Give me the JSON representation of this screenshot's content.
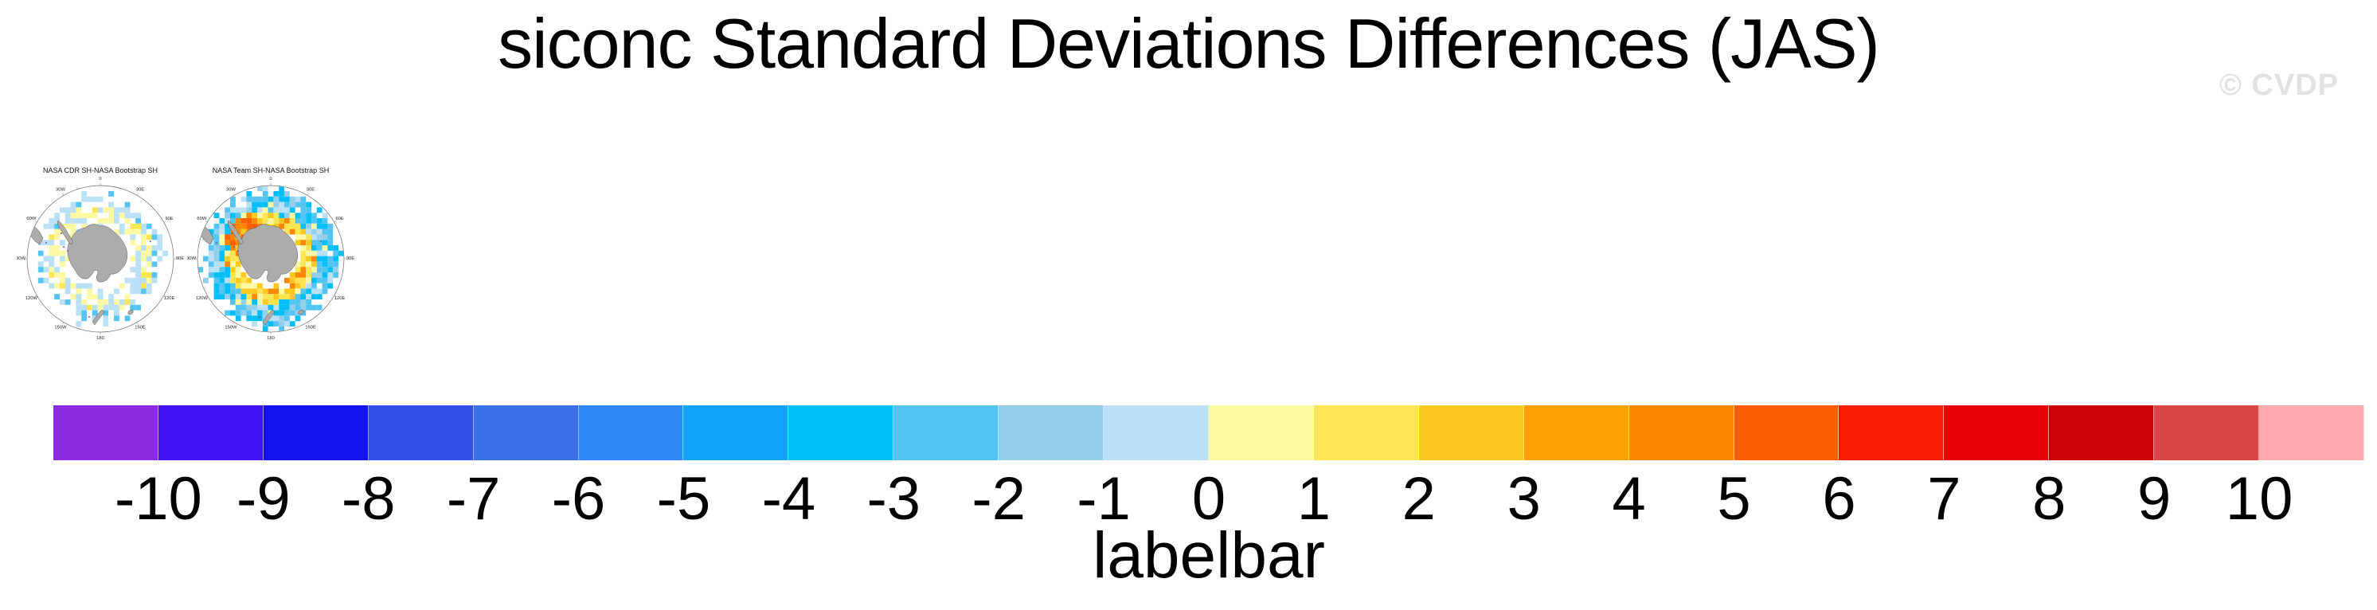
{
  "page": {
    "title": "siconc Standard Deviations Differences (JAS)",
    "watermark": "© CVDP"
  },
  "map_lon_labels": [
    {
      "label": "0",
      "angle": 0
    },
    {
      "label": "30E",
      "angle": 30
    },
    {
      "label": "60E",
      "angle": 60
    },
    {
      "label": "90E",
      "angle": 90
    },
    {
      "label": "120E",
      "angle": 120
    },
    {
      "label": "150E",
      "angle": 150
    },
    {
      "label": "180",
      "angle": 180
    },
    {
      "label": "150W",
      "angle": 210
    },
    {
      "label": "120W",
      "angle": 240
    },
    {
      "label": "90W",
      "angle": 270
    },
    {
      "label": "60W",
      "angle": 300
    },
    {
      "label": "30W",
      "angle": 330
    }
  ],
  "maps": [
    {
      "title": "NASA CDR SH-NASA Bootstrap SH",
      "seed": 12,
      "ring": {
        "inner": 42,
        "outer": 79
      },
      "hotspot": null,
      "palette": {
        "outer": [
          "#B9E0F5",
          "#B9E0F5",
          "#54C5F2",
          "#B9E0F5",
          "",
          "",
          ""
        ],
        "mid": [
          "#FDF9A3",
          "#FDF9A3",
          "#FDF9A3",
          "#B9E0F5",
          "#FEE551",
          "#B9E0F5",
          ""
        ],
        "inner": [
          "#FDF9A3",
          "#FDF9A3",
          "#B9E0F5",
          "#B9E0F5",
          "",
          ""
        ],
        "hot": []
      }
    },
    {
      "title": "NASA Team SH-NASA Bootstrap SH",
      "seed": 99,
      "ring": {
        "inner": 36,
        "outer": 86
      },
      "hotspot": [
        285,
        340
      ],
      "palette": {
        "outer": [
          "#54C5F2",
          "#00BFF8",
          "#00BFF8",
          "#93CFEA",
          "#B9E0F5",
          "#54C5F2",
          ""
        ],
        "mid": [
          "#00BFF8",
          "#54C5F2",
          "#93CFEA",
          "#B9E0F5",
          "#FDF9A3",
          "#00BFF8"
        ],
        "inner": [
          "#FEE551",
          "#FDC920",
          "#FEE551",
          "#FDC920",
          "#FDF9A3",
          "#FB8800"
        ],
        "hot": [
          "#FB8800",
          "#FC5E04",
          "#FDC920",
          "#FB8800"
        ]
      }
    }
  ],
  "labelbar": {
    "caption": "labelbar",
    "tick_labels": [
      "-10",
      "-9",
      "-8",
      "-7",
      "-6",
      "-5",
      "-4",
      "-3",
      "-2",
      "-1",
      "0",
      "1",
      "2",
      "3",
      "4",
      "5",
      "6",
      "7",
      "8",
      "9",
      "10"
    ],
    "colors": [
      "#8B2BE2",
      "#4213F2",
      "#1512F0",
      "#3250E8",
      "#3A70E8",
      "#2E87F6",
      "#14A3FB",
      "#00BFF8",
      "#54C5F2",
      "#93CFEA",
      "#B9E0F5",
      "#FDF9A3",
      "#FEE551",
      "#FDC920",
      "#FCA303",
      "#FB8800",
      "#FC5E04",
      "#FB1C06",
      "#E80309",
      "#CB0406",
      "#DC4548",
      "#FFA9AD"
    ]
  },
  "land_color": "#ACACAC",
  "chart_data": [
    {
      "type": "heatmap",
      "title": "NASA CDR SH-NASA Bootstrap SH",
      "projection": "south polar stereographic",
      "lon_tick_labels": [
        "0",
        "30E",
        "60E",
        "90E",
        "120E",
        "150E",
        "180",
        "150W",
        "120W",
        "90W",
        "60W",
        "30W"
      ],
      "legend": "cell colors keyed to the shared labelbar levels",
      "visual_summary": "sparse ring of mostly pale-yellow cells (about 0 to 1) mixed with pale-blue cells (about -1 to 0) surrounding gray Antarctica; a few brighter blue cells on the outer edge"
    },
    {
      "type": "heatmap",
      "title": "NASA Team SH-NASA Bootstrap SH",
      "projection": "south polar stereographic",
      "lon_tick_labels": [
        "0",
        "30E",
        "60E",
        "90E",
        "120E",
        "150E",
        "180",
        "150W",
        "120W",
        "90W",
        "60W",
        "30W"
      ],
      "legend": "cell colors keyed to the shared labelbar levels",
      "visual_summary": "nearly complete outer ring of blue cells (about -5 to -1) around an inner ring of yellow to gold cells (about 1 to 4), with the strongest orange cells (about 5 to 7) northwest of the Antarctic Peninsula"
    },
    {
      "type": "colorbar",
      "label": "labelbar",
      "levels": [
        -10,
        -9,
        -8,
        -7,
        -6,
        -5,
        -4,
        -3,
        -2,
        -1,
        0,
        1,
        2,
        3,
        4,
        5,
        6,
        7,
        8,
        9,
        10
      ],
      "colors": [
        "#8B2BE2",
        "#4213F2",
        "#1512F0",
        "#3250E8",
        "#3A70E8",
        "#2E87F6",
        "#14A3FB",
        "#00BFF8",
        "#54C5F2",
        "#93CFEA",
        "#B9E0F5",
        "#FDF9A3",
        "#FEE551",
        "#FDC920",
        "#FCA303",
        "#FB8800",
        "#FC5E04",
        "#FB1C06",
        "#E80309",
        "#CB0406",
        "#DC4548",
        "#FFA9AD"
      ]
    }
  ]
}
